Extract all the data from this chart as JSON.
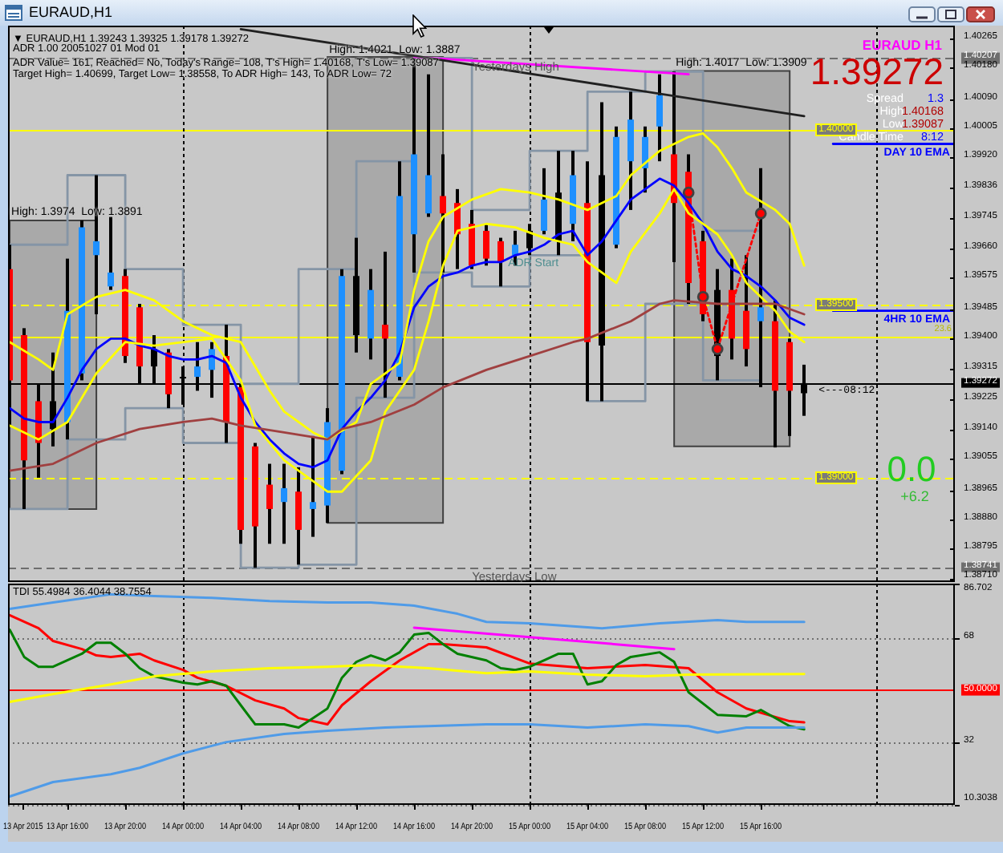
{
  "chart_data": [
    {
      "type": "candlestick",
      "title": "EURAUD,H1",
      "x": [
        "2015-04-13T12:00",
        "2015-04-13T13:00",
        "2015-04-13T14:00",
        "2015-04-13T15:00",
        "2015-04-13T16:00",
        "2015-04-13T17:00",
        "2015-04-13T18:00",
        "2015-04-13T19:00",
        "2015-04-13T20:00",
        "2015-04-13T21:00",
        "2015-04-13T22:00",
        "2015-04-13T23:00",
        "2015-04-14T00:00",
        "2015-04-14T01:00",
        "2015-04-14T02:00",
        "2015-04-14T03:00",
        "2015-04-14T04:00",
        "2015-04-14T05:00",
        "2015-04-14T06:00",
        "2015-04-14T07:00",
        "2015-04-14T08:00",
        "2015-04-14T09:00",
        "2015-04-14T10:00",
        "2015-04-14T11:00",
        "2015-04-14T12:00",
        "2015-04-14T13:00",
        "2015-04-14T14:00",
        "2015-04-14T15:00",
        "2015-04-14T16:00",
        "2015-04-14T17:00",
        "2015-04-14T18:00",
        "2015-04-14T19:00",
        "2015-04-14T20:00",
        "2015-04-14T21:00",
        "2015-04-14T22:00",
        "2015-04-14T23:00",
        "2015-04-15T00:00",
        "2015-04-15T01:00",
        "2015-04-15T02:00",
        "2015-04-15T03:00",
        "2015-04-15T04:00",
        "2015-04-15T05:00",
        "2015-04-15T06:00",
        "2015-04-15T07:00",
        "2015-04-15T08:00",
        "2015-04-15T09:00",
        "2015-04-15T10:00",
        "2015-04-15T11:00",
        "2015-04-15T12:00",
        "2015-04-15T13:00",
        "2015-04-15T14:00",
        "2015-04-15T15:00",
        "2015-04-15T16:00",
        "2015-04-15T17:00",
        "2015-04-15T18:00",
        "2015-04-15T19:00"
      ],
      "ohlc": [
        [
          1.396,
          1.3967,
          1.3915,
          1.3928
        ],
        [
          1.3941,
          1.3943,
          1.3891,
          1.3905
        ],
        [
          1.3922,
          1.3927,
          1.39,
          1.391
        ],
        [
          1.3914,
          1.3936,
          1.3909,
          1.3922
        ],
        [
          1.3916,
          1.3963,
          1.3911,
          1.3948
        ],
        [
          1.393,
          1.3974,
          1.3928,
          1.3972
        ],
        [
          1.3964,
          1.3987,
          1.3947,
          1.3968
        ],
        [
          1.3955,
          1.3975,
          1.3954,
          1.3959
        ],
        [
          1.3958,
          1.396,
          1.3933,
          1.3935
        ],
        [
          1.3949,
          1.395,
          1.3927,
          1.3932
        ],
        [
          1.3937,
          1.3941,
          1.3927,
          1.3932
        ],
        [
          1.3936,
          1.3937,
          1.392,
          1.3924
        ],
        [
          1.3929,
          1.3932,
          1.3921,
          1.3929
        ],
        [
          1.3929,
          1.3939,
          1.3925,
          1.3932
        ],
        [
          1.3931,
          1.3939,
          1.3923,
          1.3937
        ],
        [
          1.3935,
          1.3944,
          1.391,
          1.3916
        ],
        [
          1.3926,
          1.3927,
          1.3881,
          1.3885
        ],
        [
          1.3909,
          1.391,
          1.38741,
          1.3886
        ],
        [
          1.3898,
          1.3904,
          1.3881,
          1.3891
        ],
        [
          1.3893,
          1.3904,
          1.3881,
          1.3897
        ],
        [
          1.3896,
          1.3903,
          1.3875,
          1.3885
        ],
        [
          1.3891,
          1.3912,
          1.3883,
          1.3893
        ],
        [
          1.3892,
          1.392,
          1.3887,
          1.3916
        ],
        [
          1.3902,
          1.396,
          1.3901,
          1.3958
        ],
        [
          1.3958,
          1.3969,
          1.3936,
          1.3941
        ],
        [
          1.394,
          1.396,
          1.3934,
          1.3954
        ],
        [
          1.3944,
          1.3965,
          1.3923,
          1.394
        ],
        [
          1.3929,
          1.3991,
          1.3928,
          1.3981
        ],
        [
          1.397,
          1.40207,
          1.3959,
          1.3993
        ],
        [
          1.3976,
          1.4016,
          1.3975,
          1.3987
        ],
        [
          1.3981,
          1.3993,
          1.3959,
          1.3976
        ],
        [
          1.3979,
          1.3983,
          1.396,
          1.397
        ],
        [
          1.3973,
          1.3977,
          1.396,
          1.3961
        ],
        [
          1.3971,
          1.3973,
          1.3961,
          1.3963
        ],
        [
          1.3968,
          1.3969,
          1.3955,
          1.3962
        ],
        [
          1.3964,
          1.3971,
          1.3961,
          1.3967
        ],
        [
          1.3966,
          1.3973,
          1.3964,
          1.3971
        ],
        [
          1.3971,
          1.3989,
          1.397,
          1.398
        ],
        [
          1.3968,
          1.3994,
          1.3964,
          1.3982
        ],
        [
          1.3973,
          1.3994,
          1.3968,
          1.3987
        ],
        [
          1.3979,
          1.3991,
          1.3922,
          1.3939
        ],
        [
          1.3938,
          1.4008,
          1.3922,
          1.3987
        ],
        [
          1.3967,
          1.4001,
          1.3966,
          1.3998
        ],
        [
          1.3991,
          1.4011,
          1.3977,
          1.4003
        ],
        [
          1.3989,
          1.4001,
          1.3982,
          1.3998
        ],
        [
          1.4001,
          1.4016,
          1.3991,
          1.401
        ],
        [
          1.3993,
          1.40168,
          1.3962,
          1.3979
        ],
        [
          1.3988,
          1.3993,
          1.395,
          1.3956
        ],
        [
          1.3968,
          1.3971,
          1.3945,
          1.3947
        ],
        [
          1.3954,
          1.396,
          1.3928,
          1.3935
        ],
        [
          1.3954,
          1.3963,
          1.3934,
          1.394
        ],
        [
          1.3948,
          1.3964,
          1.3932,
          1.3937
        ],
        [
          1.3945,
          1.3989,
          1.3926,
          1.3949
        ],
        [
          1.3945,
          1.3951,
          1.39087,
          1.3925
        ],
        [
          1.3939,
          1.394,
          1.3912,
          1.3925
        ],
        [
          1.39243,
          1.39325,
          1.39178,
          1.39272
        ]
      ],
      "colors": [
        "#ff0000",
        "#ff0000",
        "#ff0000",
        "#000000",
        "#1e90ff",
        "#1e90ff",
        "#1e90ff",
        "#1e90ff",
        "#ff0000",
        "#ff0000",
        "#000000",
        "#ff0000",
        "#000000",
        "#1e90ff",
        "#1e90ff",
        "#ff0000",
        "#ff0000",
        "#ff0000",
        "#ff0000",
        "#1e90ff",
        "#ff0000",
        "#1e90ff",
        "#1e90ff",
        "#1e90ff",
        "#000000",
        "#1e90ff",
        "#ff0000",
        "#1e90ff",
        "#1e90ff",
        "#1e90ff",
        "#ff0000",
        "#ff0000",
        "#ff0000",
        "#ff0000",
        "#ff0000",
        "#1e90ff",
        "#000000",
        "#1e90ff",
        "#000000",
        "#1e90ff",
        "#ff0000",
        "#000000",
        "#1e90ff",
        "#1e90ff",
        "#1e90ff",
        "#1e90ff",
        "#ff0000",
        "#ff0000",
        "#ff0000",
        "#000000",
        "#ff0000",
        "#ff0000",
        "#1e90ff",
        "#ff0000",
        "#ff0000",
        "#000000"
      ],
      "xlim": [
        "2015-04-13T11:53",
        "2015-04-16T05:26"
      ],
      "ylim": [
        1.387,
        1.403
      ],
      "yticks": [
        1.40265,
        {
          "value": 1.40207,
          "label": "1.40207"
        },
        {
          "value": 1.4018,
          "label": "1.40180"
        },
        {
          "value": 1.4009,
          "label": "1.40090"
        },
        1.40005,
        {
          "value": 1.3992,
          "label": "1.39920"
        },
        1.39836,
        1.39745,
        {
          "value": 1.3966,
          "label": "1.39660"
        },
        1.39575,
        1.39485,
        {
          "value": 1.394,
          "label": "1.39400"
        },
        1.39315,
        {
          "value": 1.39272,
          "label": "1.39272"
        },
        1.39225,
        {
          "value": 1.3914,
          "label": "1.39140"
        },
        1.39055,
        1.38965,
        {
          "value": 1.3888,
          "label": "1.38880"
        },
        1.38795,
        {
          "value": 1.38741,
          "label": "1.38741"
        },
        {
          "value": 1.3871,
          "label": "1.38710"
        }
      ],
      "tick_labels": "y",
      "series": [
        {
          "type": "line",
          "color": "#a9a9a9",
          "x": [
            "2015-04-13T12:00",
            "2015-04-13T18:00"
          ],
          "values": [
            null,
            null
          ],
          "lower": [
            1.3891,
            1.3891
          ],
          "upper": [
            1.3974,
            1.3974
          ]
        },
        {
          "type": "line",
          "color": "#a9a9a9",
          "x": [
            "2015-04-14T10:00",
            "2015-04-14T18:00"
          ],
          "values": [
            null,
            null
          ],
          "lower": [
            1.3887,
            1.3887
          ],
          "upper": [
            1.4021,
            1.4021
          ]
        },
        {
          "type": "line",
          "color": "#a9a9a9",
          "x": [
            "2015-04-15T10:00",
            "2015-04-15T18:00"
          ],
          "values": [
            null,
            null
          ],
          "lower": [
            1.3909,
            1.3909
          ],
          "upper": [
            1.4017,
            1.4017
          ]
        },
        {
          "type": "step",
          "color": "#8595a6",
          "x": [
            "2015-04-13T12:00",
            "2015-04-13T16:00",
            "2015-04-13T20:00",
            "2015-04-14T00:00",
            "2015-04-14T04:00",
            "2015-04-14T08:00",
            "2015-04-14T12:00",
            "2015-04-14T16:00",
            "2015-04-14T20:00",
            "2015-04-15T00:00",
            "2015-04-15T04:00",
            "2015-04-15T08:00",
            "2015-04-15T12:00",
            "2015-04-15T16:00"
          ],
          "values": [
            1.3967,
            1.3987,
            1.396,
            1.3944,
            1.3927,
            1.396,
            1.3991,
            1.40207,
            1.3977,
            1.3994,
            1.4011,
            1.40168,
            1.3971,
            1.3971
          ]
        },
        {
          "type": "step",
          "color": "#8595a6",
          "x": [
            "2015-04-13T12:00",
            "2015-04-13T16:00",
            "2015-04-13T20:00",
            "2015-04-14T00:00",
            "2015-04-14T04:00",
            "2015-04-14T08:00",
            "2015-04-14T12:00",
            "2015-04-14T16:00",
            "2015-04-14T20:00",
            "2015-04-15T00:00",
            "2015-04-15T04:00",
            "2015-04-15T08:00",
            "2015-04-15T12:00",
            "2015-04-15T16:00"
          ],
          "values": [
            1.3891,
            1.3911,
            1.392,
            1.391,
            1.38741,
            1.3875,
            1.3923,
            1.3959,
            1.3955,
            1.3964,
            1.3922,
            1.395,
            1.3928,
            1.3928
          ]
        },
        {
          "type": "line",
          "color": "#a04040",
          "x": [
            "2015-04-13T12:00",
            "2015-04-13T15:00",
            "2015-04-13T18:00",
            "2015-04-13T21:00",
            "2015-04-14T00:00",
            "2015-04-14T02:00",
            "2015-04-14T04:00",
            "2015-04-14T07:00",
            "2015-04-14T10:00",
            "2015-04-14T11:00",
            "2015-04-14T13:00",
            "2015-04-14T16:00",
            "2015-04-14T18:00",
            "2015-04-14T21:00",
            "2015-04-15T00:00",
            "2015-04-15T03:00",
            "2015-04-15T04:00",
            "2015-04-15T07:00",
            "2015-04-15T09:00",
            "2015-04-15T10:00",
            "2015-04-15T13:00",
            "2015-04-15T17:00",
            "2015-04-15T19:00"
          ],
          "values": [
            1.3902,
            1.3904,
            1.391,
            1.3914,
            1.3916,
            1.3917,
            1.3915,
            1.3913,
            1.3911,
            1.3914,
            1.3916,
            1.3921,
            1.3926,
            1.3931,
            1.3935,
            1.3939,
            1.394,
            1.3945,
            1.395,
            1.3951,
            1.395,
            1.395,
            1.3947
          ]
        },
        {
          "type": "line",
          "color": "#ffff00",
          "x": [
            "2015-04-13T12:00",
            "2015-04-13T14:00",
            "2015-04-13T15:00",
            "2015-04-13T16:00",
            "2015-04-13T18:00",
            "2015-04-13T20:00",
            "2015-04-13T22:00",
            "2015-04-14T00:00",
            "2015-04-14T02:00",
            "2015-04-14T04:00",
            "2015-04-14T06:00",
            "2015-04-14T07:00",
            "2015-04-14T09:00",
            "2015-04-14T10:00",
            "2015-04-14T12:00",
            "2015-04-14T13:00",
            "2015-04-14T15:00",
            "2015-04-14T16:00",
            "2015-04-14T17:00",
            "2015-04-14T18:00",
            "2015-04-14T20:00",
            "2015-04-14T22:00",
            "2015-04-15T00:00",
            "2015-04-15T02:00",
            "2015-04-15T04:00",
            "2015-04-15T06:00",
            "2015-04-15T07:00",
            "2015-04-15T09:00",
            "2015-04-15T10:00",
            "2015-04-15T11:00",
            "2015-04-15T12:00",
            "2015-04-15T13:00",
            "2015-04-15T14:00",
            "2015-04-15T15:00",
            "2015-04-15T17:00",
            "2015-04-15T18:00",
            "2015-04-15T19:00"
          ],
          "values": [
            1.3939,
            1.3934,
            1.3931,
            1.3947,
            1.3952,
            1.3954,
            1.3951,
            1.3945,
            1.3941,
            1.3939,
            1.3925,
            1.3919,
            1.3913,
            1.3911,
            1.3916,
            1.3927,
            1.3933,
            1.3954,
            1.3968,
            1.3975,
            1.398,
            1.3983,
            1.3982,
            1.398,
            1.3977,
            1.3981,
            1.3987,
            1.3994,
            1.3996,
            1.3998,
            1.3999,
            1.3995,
            1.3989,
            1.3982,
            1.3977,
            1.3973,
            1.3961
          ]
        },
        {
          "type": "line",
          "color": "#ffff00",
          "x": [
            "2015-04-13T12:00",
            "2015-04-13T14:00",
            "2015-04-13T16:00",
            "2015-04-13T18:00",
            "2015-04-13T20:00",
            "2015-04-13T22:00",
            "2015-04-14T02:00",
            "2015-04-14T04:00",
            "2015-04-14T05:00",
            "2015-04-14T07:00",
            "2015-04-14T10:00",
            "2015-04-14T11:00",
            "2015-04-14T13:00",
            "2015-04-14T14:00",
            "2015-04-14T16:00",
            "2015-04-14T17:00",
            "2015-04-14T18:00",
            "2015-04-14T19:00",
            "2015-04-14T21:00",
            "2015-04-14T23:00",
            "2015-04-15T01:00",
            "2015-04-15T03:00",
            "2015-04-15T04:00",
            "2015-04-15T06:00",
            "2015-04-15T07:00",
            "2015-04-15T09:00",
            "2015-04-15T10:00",
            "2015-04-15T11:00",
            "2015-04-15T13:00",
            "2015-04-15T14:00",
            "2015-04-15T15:00",
            "2015-04-15T17:00",
            "2015-04-15T18:00",
            "2015-04-15T19:00"
          ],
          "values": [
            1.3915,
            1.3911,
            1.3916,
            1.393,
            1.3939,
            1.3938,
            1.394,
            1.3928,
            1.3915,
            1.3905,
            1.3896,
            1.3896,
            1.3905,
            1.3919,
            1.3931,
            1.3945,
            1.3961,
            1.3971,
            1.3973,
            1.3972,
            1.3969,
            1.3967,
            1.3962,
            1.3956,
            1.3965,
            1.3976,
            1.3983,
            1.3976,
            1.397,
            1.3964,
            1.3956,
            1.3948,
            1.3942,
            1.3939
          ]
        },
        {
          "type": "line",
          "color": "#0000ff",
          "values": [
            1.392,
            1.3917,
            1.3916,
            1.3916,
            1.3923,
            1.3931,
            1.3937,
            1.394,
            1.394,
            1.3938,
            1.3937,
            1.3935,
            1.3934,
            1.3934,
            1.3935,
            1.3933,
            1.3923,
            1.3916,
            1.3911,
            1.3907,
            1.3904,
            1.3903,
            1.3905,
            1.3914,
            1.3919,
            1.3923,
            1.3928,
            1.3936,
            1.3949,
            1.3955,
            1.3958,
            1.3959,
            1.3961,
            1.3962,
            1.3962,
            1.3964,
            1.3965,
            1.3967,
            1.397,
            1.3971,
            1.3964,
            1.3968,
            1.3974,
            1.398,
            1.3983,
            1.3986,
            1.3984,
            1.3979,
            1.3973,
            1.3965,
            1.396,
            1.3958,
            1.3955,
            1.3951,
            1.3946,
            1.3944
          ]
        },
        {
          "type": "line",
          "color": "#202020",
          "x": [
            "2015-04-14T04:00",
            "2015-04-15T19:00"
          ],
          "values": [
            1.4029,
            1.4004
          ]
        },
        {
          "type": "line",
          "color": "#ff00ff",
          "x": [
            "2015-04-14T16:00",
            "2015-04-15T11:00"
          ],
          "values": [
            1.4021,
            1.4016
          ]
        },
        {
          "type": "line",
          "color": "#ff0000",
          "line_style": "dotted",
          "marker": "circle",
          "x": [
            "2015-04-15T11:00",
            "2015-04-15T12:00",
            "2015-04-15T13:00",
            "2015-04-15T16:00"
          ],
          "values": [
            1.3982,
            1.3952,
            1.3937,
            1.3976
          ]
        },
        {
          "type": "line",
          "name": "DAY 10 EMA",
          "color": "#0000ff",
          "x": [
            "2015-04-15T21:00",
            "2015-04-16T05:26"
          ],
          "values": [
            1.3996,
            1.3996
          ]
        },
        {
          "type": "line",
          "name": "4HR 10 EMA",
          "color": "#0000ff",
          "x": [
            "2015-04-15T21:00",
            "2015-04-16T05:26"
          ],
          "values": [
            1.3948,
            1.3948
          ]
        }
      ],
      "ref_lines": [
        {
          "axis": "y",
          "value": 1.40207,
          "color": "#6e6e6e",
          "line_style": "dashed"
        },
        {
          "axis": "y",
          "value": 1.38741,
          "color": "#6e6e6e",
          "line_style": "dashed"
        },
        {
          "axis": "y",
          "value": 1.39272,
          "color": "#000000"
        },
        {
          "axis": "y",
          "value": 1.4,
          "label": "1.40000",
          "color": "#ffff00"
        },
        {
          "axis": "y",
          "value": 1.395,
          "label": "1.39500",
          "color": "#ffff00",
          "line_style": "dashed"
        },
        {
          "axis": "y",
          "value": 1.39,
          "label": "1.39000",
          "color": "#ffff00",
          "line_style": "dashed"
        },
        {
          "axis": "y",
          "value": 1.39405,
          "color": "#ffff00"
        },
        {
          "axis": "x",
          "value": "2015-04-14T00:00",
          "color": "#000000",
          "line_style": "dotted"
        },
        {
          "axis": "x",
          "value": "2015-04-15T00:00",
          "color": "#000000",
          "line_style": "dotted"
        },
        {
          "axis": "x",
          "value": "2015-04-16T00:00",
          "color": "#000000",
          "line_style": "dotted"
        }
      ],
      "annotations": [
        "▼ EURAUD,H1 1.39243 1.39325 1.39178 1.39272",
        "ADR 1.00 20051027 01 Mod 01",
        "ADR Value= 161, Reached= No, Today's Range= 108, T's High= 1.40168, T's Low= 1.39087",
        "Target High= 1.40699, Target Low= 1.38558, To ADR High= 143, To ADR Low= 72",
        "EURAUD H1",
        "1.39272",
        "Spread",
        "1.3",
        "High",
        "1.40168",
        "Low",
        "1.39087",
        "Candle Time",
        "8:12",
        "0.0",
        "+6.2",
        {
          "text": "Yesterdays High",
          "x": "2015-04-14T20:00",
          "y": 1.40207
        },
        {
          "text": "Yesterdays Low",
          "x": "2015-04-14T20:00",
          "y": 1.38741
        },
        {
          "text": "<---08:12",
          "x": "2015-04-15T20:00",
          "y": 1.39272
        },
        {
          "text": "ADR Start",
          "x": "2015-04-14T22:30",
          "y": 1.3964
        },
        "23.6",
        {
          "text": "High: 1.3974  Low: 1.3891",
          "x": "2015-04-13T12:00",
          "y": 1.3974
        },
        {
          "text": "High: 1.4021  Low: 1.3887",
          "x": "2015-04-14T10:00",
          "y": 1.4021
        },
        {
          "text": "High: 1.4017  Low: 1.3909",
          "x": "2015-04-15T10:00",
          "y": 1.4017
        }
      ]
    },
    {
      "type": "line",
      "title": "TDI 55.4984 36.4044 38.7554",
      "xlim": [
        "2015-04-13T11:53",
        "2015-04-16T05:26"
      ],
      "xticks": [
        {
          "value": "2015-04-13T12:55",
          "label": "13 Apr 2015"
        },
        {
          "value": "2015-04-13T16:00",
          "label": "13 Apr 16:00"
        },
        {
          "value": "2015-04-13T20:00",
          "label": "13 Apr 20:00"
        },
        {
          "value": "2015-04-14T00:00",
          "label": "14 Apr 00:00"
        },
        {
          "value": "2015-04-14T04:00",
          "label": "14 Apr 04:00"
        },
        {
          "value": "2015-04-14T08:00",
          "label": "14 Apr 08:00"
        },
        {
          "value": "2015-04-14T12:00",
          "label": "14 Apr 12:00"
        },
        {
          "value": "2015-04-14T16:00",
          "label": "14 Apr 16:00"
        },
        {
          "value": "2015-04-14T20:00",
          "label": "14 Apr 20:00"
        },
        {
          "value": "2015-04-15T00:00",
          "label": "15 Apr 00:00"
        },
        {
          "value": "2015-04-15T04:00",
          "label": "15 Apr 04:00"
        },
        {
          "value": "2015-04-15T08:00",
          "label": "15 Apr 08:00"
        },
        {
          "value": "2015-04-15T12:00",
          "label": "15 Apr 12:00"
        },
        {
          "value": "2015-04-15T16:00",
          "label": "15 Apr 16:00"
        }
      ],
      "ylim": [
        10.3038,
        86.702
      ],
      "yticks": [
        86.702,
        68,
        {
          "value": 50,
          "label": "50.0000"
        },
        32,
        10.3038
      ],
      "grid": "y",
      "series": [
        {
          "type": "line",
          "color": "#4f9be8",
          "x": [
            "2015-04-13T12:00",
            "2015-04-13T15:00",
            "2015-04-13T19:00",
            "2015-04-13T22:00",
            "2015-04-14T02:00",
            "2015-04-14T06:00",
            "2015-04-14T10:00",
            "2015-04-14T13:00",
            "2015-04-14T16:00",
            "2015-04-14T19:00",
            "2015-04-14T21:00",
            "2015-04-15T00:00",
            "2015-04-15T05:00",
            "2015-04-15T09:00",
            "2015-04-15T13:00",
            "2015-04-15T15:00",
            "2015-04-15T19:00"
          ],
          "values": [
            78.0,
            80.2,
            83.0,
            82.4,
            81.8,
            80.7,
            80.2,
            80.2,
            79.1,
            76.3,
            73.5,
            73.0,
            71.3,
            73.0,
            74.1,
            73.5,
            73.5
          ]
        },
        {
          "type": "line",
          "color": "#4f9be8",
          "x": [
            "2015-04-13T12:00",
            "2015-04-13T15:00",
            "2015-04-13T19:00",
            "2015-04-13T21:00",
            "2015-04-14T00:00",
            "2015-04-14T03:00",
            "2015-04-14T07:00",
            "2015-04-14T10:00",
            "2015-04-14T14:00",
            "2015-04-14T17:00",
            "2015-04-14T21:00",
            "2015-04-15T00:00",
            "2015-04-15T04:00",
            "2015-04-15T08:00",
            "2015-04-15T11:00",
            "2015-04-15T13:00",
            "2015-04-15T15:00",
            "2015-04-15T19:00"
          ],
          "values": [
            13.2,
            18.2,
            20.9,
            23.1,
            28.1,
            32.0,
            34.8,
            35.9,
            37.0,
            37.5,
            38.1,
            38.1,
            37.0,
            38.1,
            37.5,
            35.3,
            37.0,
            37.0
          ]
        },
        {
          "type": "line",
          "color": "#ffff00",
          "x": [
            "2015-04-13T12:00",
            "2015-04-13T15:00",
            "2015-04-13T19:00",
            "2015-04-13T22:00",
            "2015-04-14T02:00",
            "2015-04-14T06:00",
            "2015-04-14T10:00",
            "2015-04-14T13:00",
            "2015-04-14T17:00",
            "2015-04-14T21:00",
            "2015-04-15T00:00",
            "2015-04-15T04:00",
            "2015-04-15T08:00",
            "2015-04-15T11:00",
            "2015-04-15T19:00"
          ],
          "values": [
            45.9,
            48.6,
            51.9,
            54.7,
            56.4,
            57.5,
            58.0,
            58.6,
            57.5,
            55.8,
            56.4,
            55.3,
            54.7,
            55.3,
            55.5
          ]
        },
        {
          "type": "line",
          "color": "#008000",
          "x": [
            "2015-04-13T12:00",
            "2015-04-13T13:00",
            "2015-04-13T14:00",
            "2015-04-13T15:00",
            "2015-04-13T17:00",
            "2015-04-13T18:00",
            "2015-04-13T19:00",
            "2015-04-13T20:00",
            "2015-04-13T21:00",
            "2015-04-13T22:00",
            "2015-04-14T00:00",
            "2015-04-14T01:00",
            "2015-04-14T02:00",
            "2015-04-14T03:00",
            "2015-04-14T04:00",
            "2015-04-14T05:00",
            "2015-04-14T07:00",
            "2015-04-14T08:00",
            "2015-04-14T09:00",
            "2015-04-14T10:00",
            "2015-04-14T11:00",
            "2015-04-14T12:00",
            "2015-04-14T13:00",
            "2015-04-14T14:00",
            "2015-04-14T15:00",
            "2015-04-14T16:00",
            "2015-04-14T17:00",
            "2015-04-14T18:00",
            "2015-04-14T19:00",
            "2015-04-14T21:00",
            "2015-04-14T22:00",
            "2015-04-14T23:00",
            "2015-04-15T00:00",
            "2015-04-15T01:00",
            "2015-04-15T02:00",
            "2015-04-15T03:00",
            "2015-04-15T04:00",
            "2015-04-15T05:00",
            "2015-04-15T06:00",
            "2015-04-15T07:00",
            "2015-04-15T09:00",
            "2015-04-15T10:00",
            "2015-04-15T11:00",
            "2015-04-15T13:00",
            "2015-04-15T15:00",
            "2015-04-15T16:00",
            "2015-04-15T18:00",
            "2015-04-15T19:00"
          ],
          "values": [
            70.8,
            61.4,
            58.0,
            58.0,
            62.5,
            66.3,
            66.3,
            62.5,
            57.5,
            54.7,
            52.5,
            51.9,
            53.0,
            51.4,
            44.7,
            38.1,
            38.1,
            37.0,
            40.3,
            43.6,
            54.2,
            59.7,
            61.9,
            60.2,
            63.0,
            69.1,
            69.7,
            65.8,
            62.5,
            60.2,
            57.5,
            56.9,
            58.0,
            60.2,
            62.5,
            62.5,
            51.9,
            53.0,
            58.6,
            61.4,
            63.0,
            59.7,
            49.2,
            41.4,
            40.9,
            43.1,
            37.5,
            36.4
          ]
        },
        {
          "type": "line",
          "color": "#ff0000",
          "x": [
            "2015-04-13T12:00",
            "2015-04-13T14:00",
            "2015-04-13T15:00",
            "2015-04-13T17:00",
            "2015-04-13T18:00",
            "2015-04-13T19:00",
            "2015-04-13T21:00",
            "2015-04-13T22:00",
            "2015-04-14T00:00",
            "2015-04-14T01:00",
            "2015-04-14T03:00",
            "2015-04-14T05:00",
            "2015-04-14T07:00",
            "2015-04-14T08:00",
            "2015-04-14T10:00",
            "2015-04-14T11:00",
            "2015-04-14T13:00",
            "2015-04-14T15:00",
            "2015-04-14T17:00",
            "2015-04-14T18:00",
            "2015-04-14T21:00",
            "2015-04-15T00:00",
            "2015-04-15T04:00",
            "2015-04-15T08:00",
            "2015-04-15T11:00",
            "2015-04-15T13:00",
            "2015-04-15T15:00",
            "2015-04-15T18:00",
            "2015-04-15T19:00"
          ],
          "values": [
            75.8,
            71.3,
            66.9,
            64.1,
            61.9,
            61.4,
            62.5,
            60.2,
            56.9,
            54.2,
            51.4,
            46.4,
            43.6,
            40.3,
            38.1,
            44.7,
            53.0,
            60.2,
            65.8,
            65.8,
            64.7,
            59.1,
            57.5,
            58.6,
            57.5,
            49.2,
            43.6,
            39.2,
            38.8
          ]
        },
        {
          "type": "line",
          "color": "#ff00ff",
          "x": [
            "2015-04-14T16:00",
            "2015-04-15T10:00"
          ],
          "values": [
            71.5,
            64.1
          ]
        }
      ],
      "ref_lines": [
        {
          "axis": "y",
          "value": 50,
          "color": "#ff0000"
        },
        {
          "axis": "x",
          "value": "2015-04-14T00:00",
          "color": "#000000",
          "line_style": "dotted"
        },
        {
          "axis": "x",
          "value": "2015-04-15T00:00",
          "color": "#000000",
          "line_style": "dotted"
        },
        {
          "axis": "x",
          "value": "2015-04-16T00:00",
          "color": "#000000",
          "line_style": "dotted"
        }
      ]
    }
  ]
}
